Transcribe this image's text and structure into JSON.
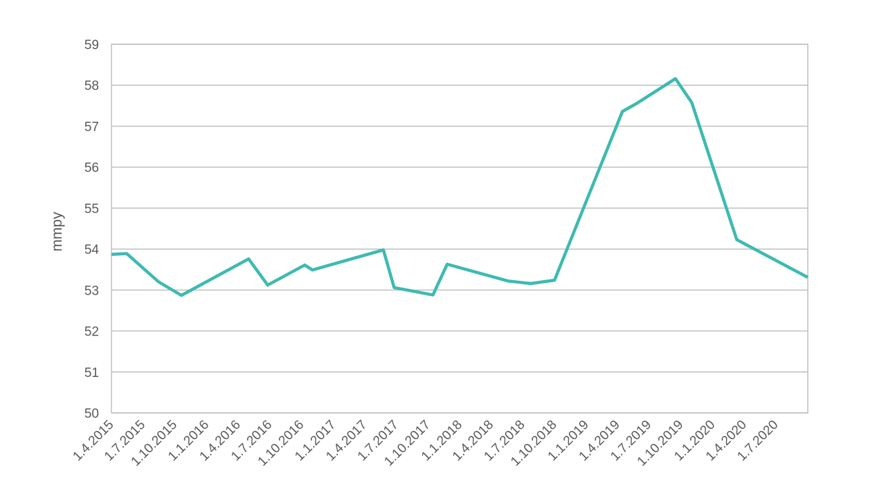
{
  "chart_data": {
    "type": "line",
    "title": "",
    "xlabel": "",
    "ylabel": "mmpy",
    "ylim": [
      50,
      59
    ],
    "yticks": [
      "50",
      "51",
      "52",
      "53",
      "54",
      "55",
      "56",
      "57",
      "58",
      "59"
    ],
    "xlim": [
      "2015-04-01",
      "2020-10-01"
    ],
    "xticks": [
      {
        "label": "1.4.2015",
        "date": "2015-04-01"
      },
      {
        "label": "1.7.2015",
        "date": "2015-07-01"
      },
      {
        "label": "1.10.2015",
        "date": "2015-10-01"
      },
      {
        "label": "1.1.2016",
        "date": "2016-01-01"
      },
      {
        "label": "1.4.2016",
        "date": "2016-04-01"
      },
      {
        "label": "1.7.2016",
        "date": "2016-07-01"
      },
      {
        "label": "1.10.2016",
        "date": "2016-10-01"
      },
      {
        "label": "1.1.2017",
        "date": "2017-01-01"
      },
      {
        "label": "1.4.2017",
        "date": "2017-04-01"
      },
      {
        "label": "1.7.2017",
        "date": "2017-07-01"
      },
      {
        "label": "1.10.2017",
        "date": "2017-10-01"
      },
      {
        "label": "1.1.2018",
        "date": "2018-01-01"
      },
      {
        "label": "1.4.2018",
        "date": "2018-04-01"
      },
      {
        "label": "1.7.2018",
        "date": "2018-07-01"
      },
      {
        "label": "1.10.2018",
        "date": "2018-10-01"
      },
      {
        "label": "1.1.2019",
        "date": "2019-01-01"
      },
      {
        "label": "1.4.2019",
        "date": "2019-04-01"
      },
      {
        "label": "1.7.2019",
        "date": "2019-07-01"
      },
      {
        "label": "1.10.2019",
        "date": "2019-10-01"
      },
      {
        "label": "1.1.2020",
        "date": "2020-01-01"
      },
      {
        "label": "1.4.2020",
        "date": "2020-04-01"
      },
      {
        "label": "1.7.2020",
        "date": "2020-07-01"
      }
    ],
    "grid": {
      "horizontal": true,
      "vertical": false
    },
    "legend": "none",
    "series": [
      {
        "color": "#3dbab2",
        "points": [
          {
            "x": "2015-04-01",
            "y": 53.87
          },
          {
            "x": "2015-05-15",
            "y": 53.89
          },
          {
            "x": "2015-08-15",
            "y": 53.2
          },
          {
            "x": "2015-10-20",
            "y": 52.87
          },
          {
            "x": "2016-05-01",
            "y": 53.76
          },
          {
            "x": "2016-06-25",
            "y": 53.12
          },
          {
            "x": "2016-10-10",
            "y": 53.61
          },
          {
            "x": "2016-11-01",
            "y": 53.49
          },
          {
            "x": "2017-05-25",
            "y": 53.98
          },
          {
            "x": "2017-06-25",
            "y": 53.06
          },
          {
            "x": "2017-10-15",
            "y": 52.88
          },
          {
            "x": "2017-11-25",
            "y": 53.63
          },
          {
            "x": "2018-05-20",
            "y": 53.22
          },
          {
            "x": "2018-07-25",
            "y": 53.16
          },
          {
            "x": "2018-10-01",
            "y": 53.24
          },
          {
            "x": "2019-04-15",
            "y": 57.36
          },
          {
            "x": "2019-05-25",
            "y": 57.55
          },
          {
            "x": "2019-09-15",
            "y": 58.16
          },
          {
            "x": "2019-11-01",
            "y": 57.58
          },
          {
            "x": "2020-03-10",
            "y": 54.23
          },
          {
            "x": "2020-10-01",
            "y": 53.31
          }
        ]
      }
    ]
  }
}
